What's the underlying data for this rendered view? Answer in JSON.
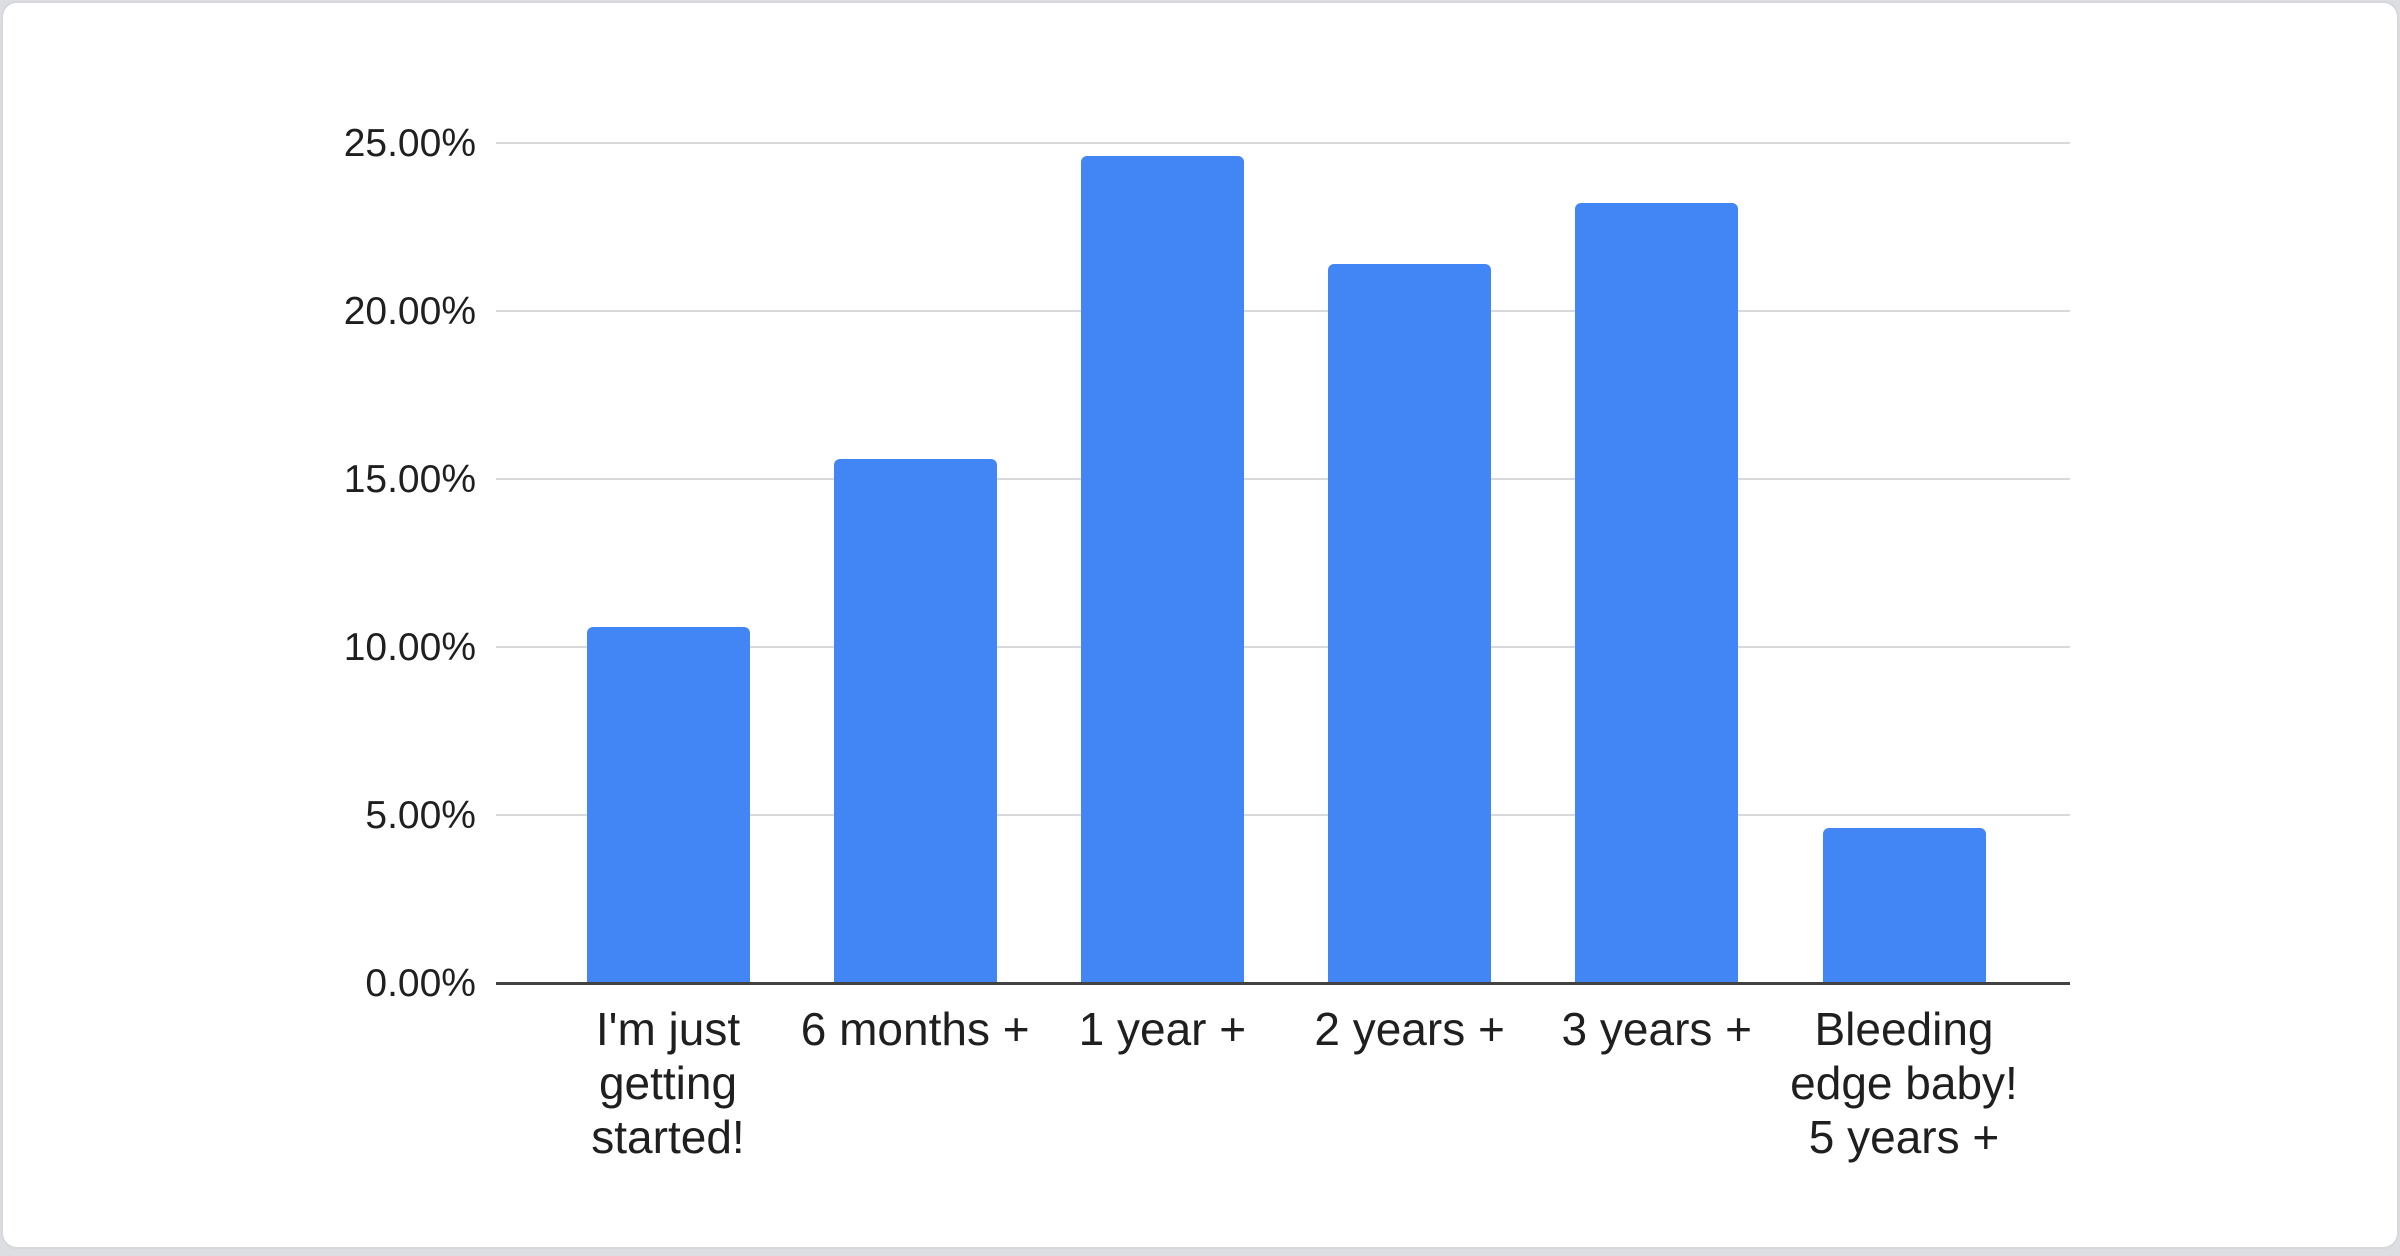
{
  "chart_data": {
    "type": "bar",
    "title": "",
    "xlabel": "",
    "ylabel": "",
    "categories": [
      "I'm just getting started!",
      "6 months +",
      "1 year +",
      "2 years +",
      "3 years +",
      "Bleeding edge baby! 5 years +"
    ],
    "values": [
      10.6,
      15.6,
      24.6,
      21.4,
      23.2,
      4.6
    ],
    "value_format": "percent",
    "ylim": [
      0,
      25
    ],
    "y_ticks": [
      0,
      5,
      10,
      15,
      20,
      25
    ],
    "y_tick_labels": [
      "0.00%",
      "5.00%",
      "10.00%",
      "15.00%",
      "20.00%",
      "25.00%"
    ],
    "grid": true,
    "legend": "none",
    "colors": {
      "bar": "#4285f4",
      "gridline": "#d9d9d9",
      "axis_line": "#424242",
      "label_text": "#1f1f1f",
      "chart_background": "#ffffff",
      "page_background": "#dcdee2"
    }
  }
}
